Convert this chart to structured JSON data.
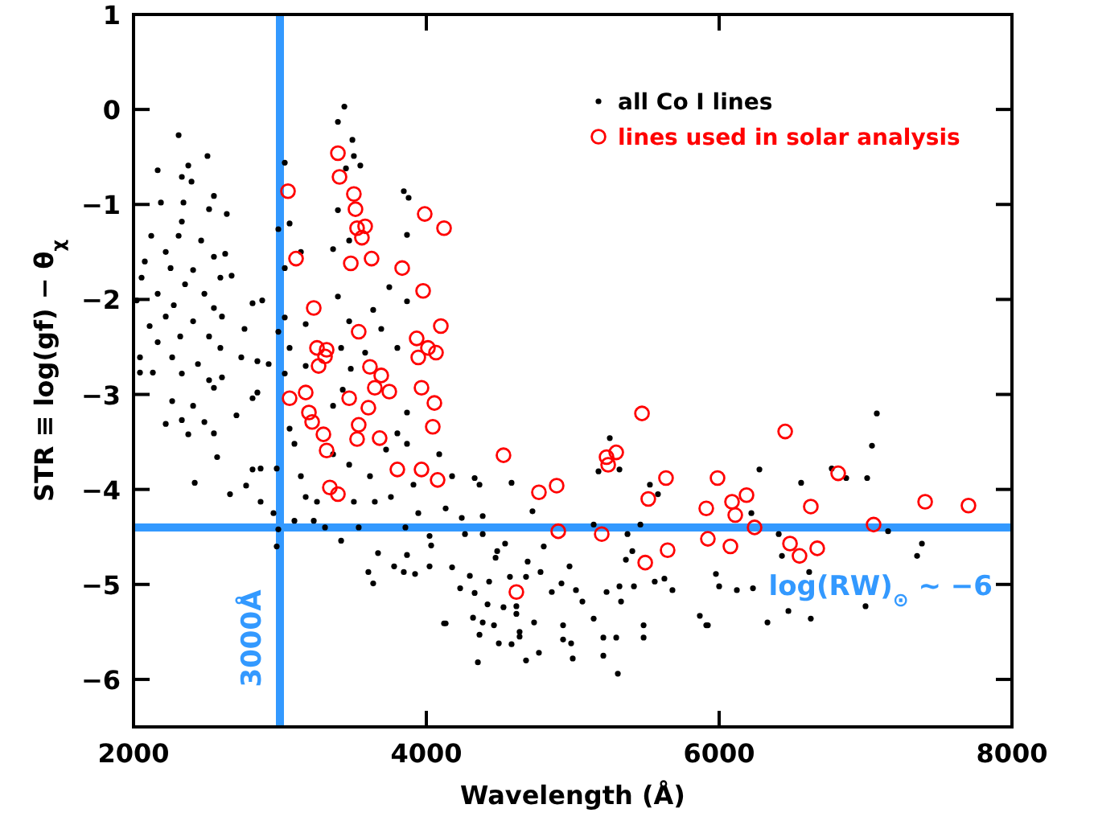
{
  "chart_data": {
    "type": "scatter",
    "xlabel": "Wavelength (Å)",
    "ylabel": "STR ≡ log(gf) − θ$_{χ}$",
    "xlim": [
      2000,
      8000
    ],
    "xticks": [
      2000,
      4000,
      6000,
      8000
    ],
    "ylim": [
      -6.5,
      1
    ],
    "yticks": [
      -6,
      -5,
      -4,
      -3,
      -2,
      -1,
      0,
      1
    ],
    "grid": false,
    "legend": "top right",
    "marker": "circle",
    "ref_lines": [
      {
        "axis": "x",
        "value": 3000,
        "label": "3000Å",
        "color": "#3399ff"
      },
      {
        "axis": "y",
        "value": -4.4,
        "label": "log(RW)$_{⊙}$ ~ −6",
        "color": "#3399ff"
      }
    ],
    "series": [
      {
        "name": "all Co I lines",
        "color": "#000000",
        "x": [
          2308,
          2505,
          2165,
          2330,
          2374,
          2396,
          2187,
          2341,
          2549,
          2516,
          2637,
          2330,
          2121,
          2308,
          2462,
          2220,
          2077,
          2549,
          2626,
          2253,
          2407,
          2055,
          2593,
          2670,
          2352,
          2165,
          2484,
          2275,
          2022,
          2549,
          2879,
          2813,
          2220,
          2407,
          2604,
          2110,
          2319,
          2516,
          2165,
          2593,
          2758,
          2044,
          2264,
          2440,
          2736,
          2846,
          2923,
          2132,
          2330,
          2604,
          3440,
          3396,
          3495,
          3033,
          3549,
          3451,
          3505,
          3846,
          3879,
          3396,
          3066,
          2989,
          3868,
          3473,
          3363,
          3033,
          3143,
          3747,
          3396,
          3868,
          3637,
          3033,
          3176,
          3473,
          3692,
          2989,
          3066,
          3418,
          3582,
          3802,
          3176,
          3484,
          3033,
          2044,
          2516,
          2549,
          2264,
          2407,
          2813,
          2846,
          2330,
          2484,
          2220,
          2703,
          2549,
          2374,
          2571,
          2813,
          2868,
          2659,
          2418,
          2769,
          2868,
          2978,
          2956,
          2989,
          2978,
          4132,
          3418,
          3538,
          3670,
          3868,
          3780,
          3846,
          3923,
          4022,
          3604,
          3637,
          4022,
          3857,
          3308,
          3231,
          3099,
          3143,
          3176,
          3253,
          3505,
          3648,
          3758,
          3945,
          3099,
          3066,
          3363,
          3473,
          3615,
          3912,
          4088,
          3868,
          3725,
          3429,
          3363,
          3868,
          3802,
          5253,
          5319,
          5176,
          5527,
          5582,
          4725,
          4582,
          4363,
          4330,
          4176,
          4385,
          4242,
          4132,
          5143,
          5462,
          5374,
          4385,
          4264,
          4033,
          4538,
          4484,
          4473,
          4802,
          4692,
          4978,
          5407,
          5363,
          5560,
          5626,
          5681,
          5418,
          5319,
          5231,
          5330,
          5066,
          5022,
          4923,
          4857,
          4780,
          4681,
          4571,
          4429,
          4297,
          4231,
          4330,
          4176,
          4418,
          4527,
          4615,
          4615,
          4319,
          4385,
          4462,
          4637,
          4736,
          4363,
          4495,
          4582,
          4637,
          4934,
          4934,
          4989,
          5143,
          5209,
          5297,
          5484,
          5484,
          5868,
          5912,
          5978,
          6000,
          4121,
          4352,
          4681,
          4769,
          5000,
          5209,
          5308,
          7077,
          7044,
          6275,
          6769,
          6868,
          7011,
          6560,
          6220,
          7154,
          6407,
          6429,
          6615,
          7385,
          7352,
          6121,
          6231,
          7000,
          6473,
          6626,
          6330,
          5923
        ],
        "values": [
          -0.27,
          -0.49,
          -0.64,
          -0.71,
          -0.59,
          -0.76,
          -0.98,
          -0.98,
          -0.91,
          -1.05,
          -1.1,
          -1.18,
          -1.33,
          -1.33,
          -1.38,
          -1.5,
          -1.6,
          -1.55,
          -1.52,
          -1.67,
          -1.69,
          -1.77,
          -1.77,
          -1.75,
          -1.84,
          -1.94,
          -1.94,
          -2.06,
          -2.01,
          -2.09,
          -2.01,
          -2.04,
          -2.18,
          -2.23,
          -2.18,
          -2.28,
          -2.39,
          -2.39,
          -2.45,
          -2.51,
          -2.31,
          -2.61,
          -2.61,
          -2.68,
          -2.61,
          -2.65,
          -2.68,
          -2.77,
          -2.78,
          -2.82,
          0.03,
          -0.13,
          -0.32,
          -0.56,
          -0.59,
          -0.62,
          -0.49,
          -0.86,
          -0.93,
          -1.06,
          -1.2,
          -1.26,
          -1.32,
          -1.38,
          -1.47,
          -1.67,
          -1.5,
          -1.87,
          -1.97,
          -2.02,
          -2.11,
          -2.19,
          -2.26,
          -2.23,
          -2.31,
          -2.34,
          -2.51,
          -2.51,
          -2.56,
          -2.51,
          -2.7,
          -2.73,
          -2.78,
          -2.77,
          -2.85,
          -2.93,
          -3.07,
          -3.12,
          -3.04,
          -2.98,
          -3.27,
          -3.29,
          -3.31,
          -3.22,
          -3.41,
          -3.42,
          -3.66,
          -3.79,
          -3.78,
          -4.05,
          -3.93,
          -3.96,
          -4.13,
          -3.78,
          -4.25,
          -4.42,
          -4.6,
          -5.41,
          -4.54,
          -4.4,
          -4.67,
          -4.69,
          -4.81,
          -4.87,
          -4.89,
          -4.81,
          -4.87,
          -4.99,
          -4.49,
          -4.4,
          -4.4,
          -4.33,
          -4.33,
          -3.86,
          -4.08,
          -4.13,
          -4.13,
          -4.13,
          -4.08,
          -4.25,
          -3.52,
          -3.36,
          -3.63,
          -3.74,
          -3.86,
          -3.95,
          -3.63,
          -3.52,
          -3.58,
          -2.95,
          -3.12,
          -3.19,
          -3.41,
          -3.46,
          -3.79,
          -3.81,
          -3.95,
          -4.05,
          -4.23,
          -3.93,
          -3.95,
          -3.88,
          -3.86,
          -4.28,
          -4.3,
          -4.2,
          -4.37,
          -4.37,
          -4.47,
          -4.47,
          -4.47,
          -4.59,
          -4.57,
          -4.65,
          -4.72,
          -4.6,
          -4.76,
          -4.81,
          -4.65,
          -4.74,
          -4.97,
          -4.94,
          -5.06,
          -5.02,
          -5.02,
          -5.08,
          -5.18,
          -5.18,
          -5.06,
          -4.99,
          -5.08,
          -4.87,
          -4.92,
          -4.92,
          -4.97,
          -4.91,
          -5.04,
          -5.09,
          -4.82,
          -5.21,
          -5.24,
          -5.23,
          -5.31,
          -5.35,
          -5.4,
          -5.43,
          -5.5,
          -5.4,
          -5.53,
          -5.62,
          -5.63,
          -5.55,
          -5.43,
          -5.58,
          -5.62,
          -5.36,
          -5.56,
          -5.56,
          -5.43,
          -5.56,
          -5.33,
          -5.43,
          -4.89,
          -5.02,
          -5.41,
          -5.82,
          -5.8,
          -5.72,
          -5.78,
          -5.75,
          -5.94,
          -3.2,
          -3.54,
          -3.79,
          -3.78,
          -3.88,
          -3.88,
          -3.93,
          -4.25,
          -4.44,
          -4.47,
          -4.7,
          -4.87,
          -4.57,
          -4.7,
          -5.06,
          -5.04,
          -5.23,
          -5.28,
          -5.36,
          -5.4,
          -5.43
        ]
      },
      {
        "name": "lines used in solar analysis",
        "color": "#ff0000",
        "x": [
          3066,
          3176,
          3198,
          3220,
          3297,
          3319,
          3341,
          3396,
          3473,
          3604,
          3538,
          3527,
          3681,
          3648,
          3747,
          3967,
          4055,
          4044,
          3802,
          3967,
          4077,
          3396,
          3407,
          3505,
          3516,
          3527,
          3582,
          3560,
          3626,
          3484,
          3835,
          3989,
          4121,
          3978,
          4099,
          3055,
          3110,
          3231,
          3538,
          3934,
          4011,
          4066,
          3945,
          3253,
          3319,
          3308,
          3264,
          3615,
          3692,
          4527,
          4769,
          4890,
          4901,
          4615,
          5473,
          5297,
          5231,
          5242,
          5198,
          5637,
          5516,
          5648,
          5495,
          5989,
          5912,
          5923,
          6451,
          6187,
          6088,
          6110,
          6626,
          6813,
          6242,
          6077,
          6484,
          6549,
          6670,
          7055,
          7407,
          7703
        ],
        "values": [
          -3.04,
          -2.98,
          -3.19,
          -3.29,
          -3.42,
          -3.59,
          -3.98,
          -4.05,
          -3.04,
          -3.14,
          -3.32,
          -3.47,
          -3.46,
          -2.93,
          -2.97,
          -2.93,
          -3.09,
          -3.34,
          -3.79,
          -3.79,
          -3.9,
          -0.46,
          -0.71,
          -0.89,
          -1.05,
          -1.25,
          -1.23,
          -1.35,
          -1.57,
          -1.62,
          -1.67,
          -1.1,
          -1.25,
          -1.91,
          -2.28,
          -0.86,
          -1.57,
          -2.09,
          -2.34,
          -2.41,
          -2.51,
          -2.56,
          -2.61,
          -2.51,
          -2.53,
          -2.6,
          -2.7,
          -2.71,
          -2.8,
          -3.64,
          -4.03,
          -3.96,
          -4.44,
          -5.08,
          -3.2,
          -3.61,
          -3.66,
          -3.74,
          -4.47,
          -3.88,
          -4.1,
          -4.64,
          -4.77,
          -3.88,
          -4.2,
          -4.52,
          -3.39,
          -4.06,
          -4.13,
          -4.27,
          -4.18,
          -3.83,
          -4.4,
          -4.6,
          -4.57,
          -4.7,
          -4.62,
          -4.37,
          -4.13,
          -4.17
        ]
      }
    ]
  }
}
